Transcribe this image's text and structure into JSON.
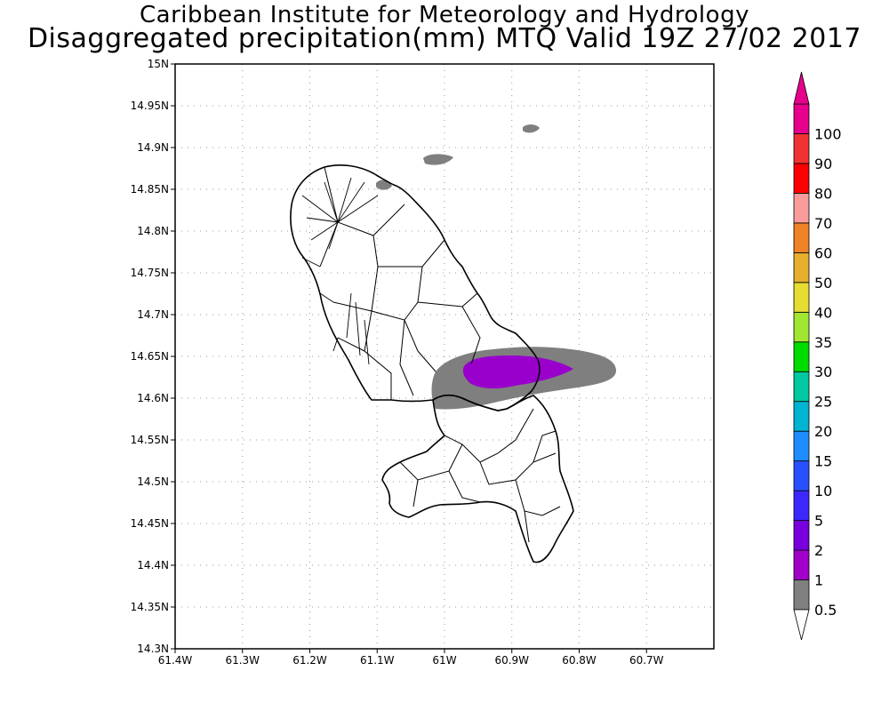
{
  "title_line1": "Caribbean Institute for Meteorology and Hydrology",
  "title_line2": "Disaggregated precipitation(mm) MTQ Valid 19Z 27/02 2017",
  "map": {
    "lon_range": [
      -61.4,
      -60.6
    ],
    "lat_range": [
      14.3,
      15.0
    ],
    "lat_ticks": [
      {
        "value": 15.0,
        "label": "15N"
      },
      {
        "value": 14.95,
        "label": "14.95N"
      },
      {
        "value": 14.9,
        "label": "14.9N"
      },
      {
        "value": 14.85,
        "label": "14.85N"
      },
      {
        "value": 14.8,
        "label": "14.8N"
      },
      {
        "value": 14.75,
        "label": "14.75N"
      },
      {
        "value": 14.7,
        "label": "14.7N"
      },
      {
        "value": 14.65,
        "label": "14.65N"
      },
      {
        "value": 14.6,
        "label": "14.6N"
      },
      {
        "value": 14.55,
        "label": "14.55N"
      },
      {
        "value": 14.5,
        "label": "14.5N"
      },
      {
        "value": 14.45,
        "label": "14.45N"
      },
      {
        "value": 14.4,
        "label": "14.4N"
      },
      {
        "value": 14.35,
        "label": "14.35N"
      },
      {
        "value": 14.3,
        "label": "14.3N"
      }
    ],
    "lon_ticks": [
      {
        "value": -61.4,
        "label": "61.4W"
      },
      {
        "value": -61.3,
        "label": "61.3W"
      },
      {
        "value": -61.2,
        "label": "61.2W"
      },
      {
        "value": -61.1,
        "label": "61.1W"
      },
      {
        "value": -61.0,
        "label": "61W"
      },
      {
        "value": -60.9,
        "label": "60.9W"
      },
      {
        "value": -60.8,
        "label": "60.8W"
      },
      {
        "value": -60.7,
        "label": "60.7W"
      }
    ],
    "grid": "dotted",
    "colors": {
      "land_outline": "#000000",
      "precip_0_5_to_1": "#7f7f7f",
      "precip_1_to_2": "#9900cc"
    }
  },
  "colorbar": {
    "levels": [
      "0.5",
      "1",
      "2",
      "5",
      "10",
      "15",
      "20",
      "25",
      "30",
      "35",
      "40",
      "50",
      "60",
      "70",
      "80",
      "90",
      "100"
    ],
    "colors": [
      "#808080",
      "#a000c8",
      "#7800dc",
      "#3c28ff",
      "#2850ff",
      "#1e8cff",
      "#00b4d2",
      "#00c8a0",
      "#00dc00",
      "#a0e632",
      "#e6dc32",
      "#e6af2d",
      "#f08228",
      "#fa9c9c",
      "#fa0000",
      "#f03232",
      "#e6008c"
    ],
    "arrow_colors": {
      "bottom": "#ffffff",
      "top": "#e6008c"
    }
  }
}
